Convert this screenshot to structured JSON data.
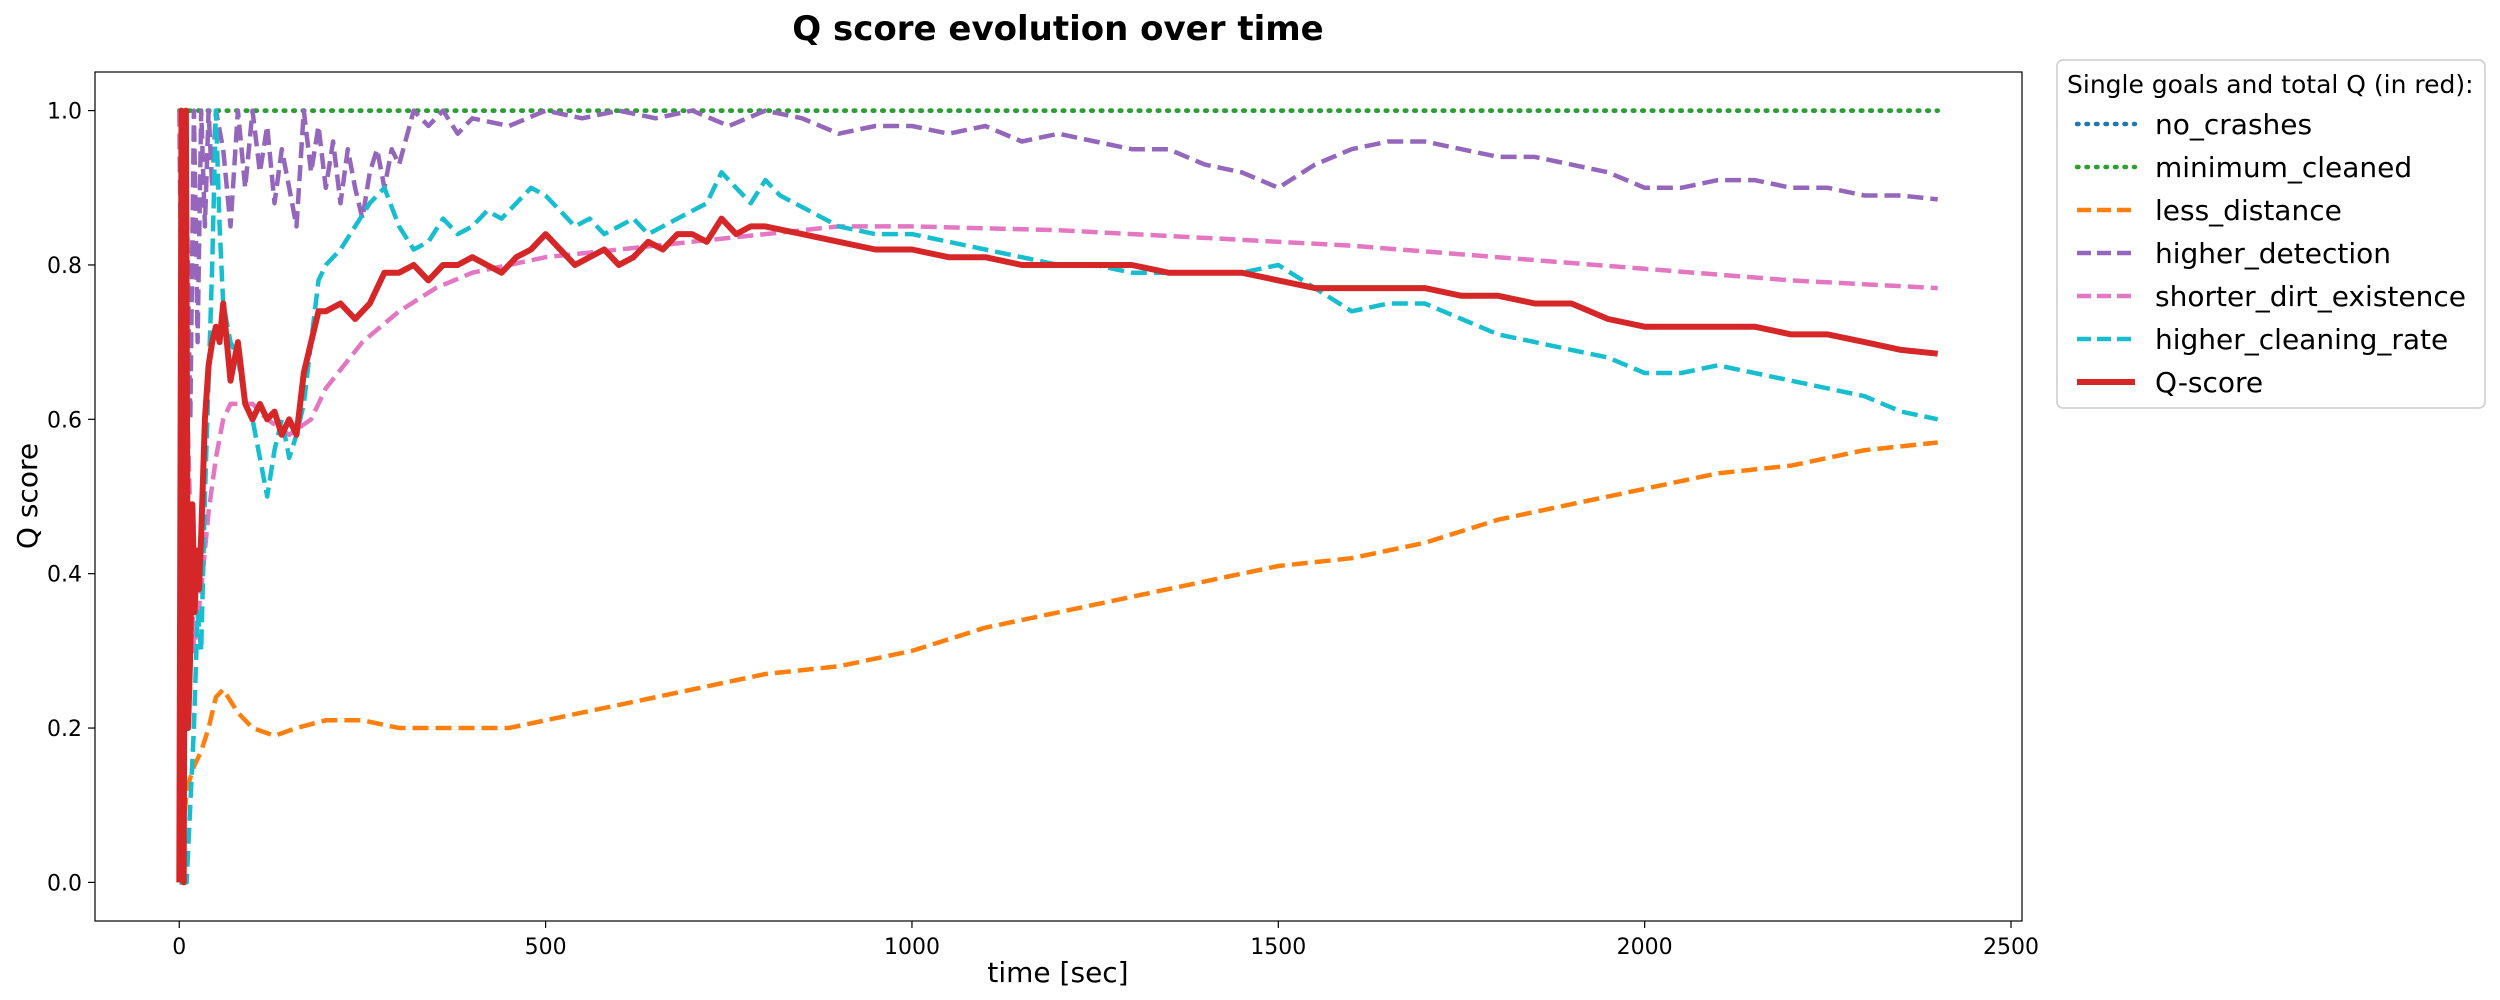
{
  "chart_data": {
    "type": "line",
    "title": "Q score evolution over time",
    "xlabel": "time [sec]",
    "ylabel": "Q score",
    "xlim": [
      -115,
      2515
    ],
    "ylim": [
      -0.05,
      1.05
    ],
    "xticks": [
      0,
      500,
      1000,
      1500,
      2000,
      2500
    ],
    "yticks": [
      0.0,
      0.2,
      0.4,
      0.6,
      0.8,
      1.0
    ],
    "xtick_labels": [
      "0",
      "500",
      "1000",
      "1500",
      "2000",
      "2500"
    ],
    "ytick_labels": [
      "0.0",
      "0.2",
      "0.4",
      "0.6",
      "0.8",
      "1.0"
    ],
    "grid": false,
    "legend": {
      "title": "Single goals and total Q (in red):",
      "placement": "outside-top-right"
    },
    "series": [
      {
        "name": "no_crashes",
        "color": "#1f77b4",
        "style": "dotted",
        "x": [
          0,
          2400
        ],
        "y": [
          1.0,
          1.0
        ]
      },
      {
        "name": "minimum_cleaned",
        "color": "#2ca02c",
        "style": "dotted",
        "x": [
          0,
          500,
          1000,
          1500,
          2000,
          2400
        ],
        "y": [
          1.0,
          1.0,
          1.0,
          1.0,
          1.0,
          1.0
        ]
      },
      {
        "name": "less_distance",
        "color": "#ff7f0e",
        "style": "dashed",
        "x": [
          0,
          10,
          20,
          30,
          40,
          50,
          60,
          80,
          100,
          130,
          160,
          200,
          250,
          300,
          350,
          400,
          450,
          500,
          550,
          600,
          700,
          800,
          900,
          1000,
          1100,
          1200,
          1300,
          1400,
          1500,
          1600,
          1700,
          1800,
          1900,
          2000,
          2100,
          2200,
          2300,
          2400
        ],
        "y": [
          0.0,
          0.12,
          0.15,
          0.17,
          0.2,
          0.24,
          0.25,
          0.22,
          0.2,
          0.19,
          0.2,
          0.21,
          0.21,
          0.2,
          0.2,
          0.2,
          0.2,
          0.21,
          0.22,
          0.23,
          0.25,
          0.27,
          0.28,
          0.3,
          0.33,
          0.35,
          0.37,
          0.39,
          0.41,
          0.42,
          0.44,
          0.47,
          0.49,
          0.51,
          0.53,
          0.54,
          0.56,
          0.57
        ]
      },
      {
        "name": "higher_detection",
        "color": "#9467bd",
        "style": "dashed",
        "x": [
          0,
          5,
          10,
          15,
          20,
          25,
          30,
          35,
          40,
          45,
          50,
          60,
          70,
          80,
          90,
          100,
          110,
          120,
          130,
          140,
          150,
          160,
          170,
          180,
          190,
          200,
          210,
          220,
          230,
          240,
          250,
          260,
          270,
          280,
          290,
          300,
          320,
          340,
          360,
          380,
          400,
          450,
          500,
          550,
          600,
          650,
          700,
          750,
          800,
          850,
          900,
          950,
          1000,
          1050,
          1100,
          1150,
          1200,
          1250,
          1300,
          1350,
          1400,
          1450,
          1500,
          1550,
          1600,
          1650,
          1700,
          1750,
          1800,
          1850,
          1900,
          1950,
          2000,
          2050,
          2100,
          2150,
          2200,
          2250,
          2300,
          2350,
          2400
        ],
        "y": [
          1.0,
          0.55,
          0.9,
          0.6,
          1.0,
          0.7,
          1.0,
          0.85,
          1.0,
          0.9,
          1.0,
          0.95,
          0.85,
          1.0,
          0.9,
          1.0,
          0.92,
          0.98,
          0.88,
          0.95,
          0.9,
          0.85,
          1.0,
          0.92,
          0.98,
          0.9,
          0.96,
          0.88,
          0.95,
          0.9,
          0.86,
          0.92,
          0.95,
          0.9,
          0.95,
          0.93,
          1.0,
          0.98,
          1.0,
          0.97,
          0.99,
          0.98,
          1.0,
          0.99,
          1.0,
          0.99,
          1.0,
          0.98,
          1.0,
          0.99,
          0.97,
          0.98,
          0.98,
          0.97,
          0.98,
          0.96,
          0.97,
          0.96,
          0.95,
          0.95,
          0.93,
          0.92,
          0.9,
          0.93,
          0.95,
          0.96,
          0.96,
          0.95,
          0.94,
          0.94,
          0.93,
          0.92,
          0.9,
          0.9,
          0.91,
          0.91,
          0.9,
          0.9,
          0.89,
          0.89,
          0.885
        ]
      },
      {
        "name": "shorter_dirt_existence",
        "color": "#e377c2",
        "style": "dashed",
        "x": [
          0,
          20,
          30,
          40,
          50,
          60,
          70,
          80,
          100,
          120,
          150,
          180,
          200,
          250,
          300,
          350,
          400,
          500,
          600,
          700,
          800,
          900,
          1000,
          1200,
          1400,
          1600,
          1800,
          2000,
          2200,
          2400
        ],
        "y": [
          1.0,
          0.3,
          0.38,
          0.48,
          0.55,
          0.6,
          0.62,
          0.62,
          0.62,
          0.6,
          0.58,
          0.6,
          0.64,
          0.7,
          0.74,
          0.77,
          0.79,
          0.81,
          0.82,
          0.83,
          0.84,
          0.85,
          0.85,
          0.845,
          0.835,
          0.825,
          0.81,
          0.795,
          0.78,
          0.77
        ]
      },
      {
        "name": "higher_cleaning_rate",
        "color": "#17becf",
        "style": "dashed",
        "x": [
          0,
          5,
          10,
          15,
          20,
          25,
          30,
          35,
          40,
          45,
          50,
          55,
          60,
          70,
          80,
          90,
          100,
          110,
          120,
          130,
          140,
          150,
          160,
          170,
          180,
          190,
          200,
          220,
          240,
          260,
          280,
          300,
          320,
          340,
          360,
          380,
          400,
          420,
          440,
          460,
          480,
          500,
          520,
          540,
          560,
          580,
          600,
          620,
          640,
          660,
          680,
          700,
          720,
          740,
          760,
          780,
          800,
          820,
          840,
          860,
          880,
          900,
          950,
          1000,
          1050,
          1100,
          1150,
          1200,
          1250,
          1300,
          1350,
          1400,
          1450,
          1500,
          1550,
          1600,
          1650,
          1700,
          1750,
          1800,
          1850,
          1900,
          1950,
          2000,
          2050,
          2100,
          2150,
          2200,
          2250,
          2300,
          2350,
          2400
        ],
        "y": [
          0.0,
          0.0,
          0.0,
          0.1,
          0.2,
          0.35,
          0.3,
          0.5,
          0.65,
          0.8,
          1.0,
          0.85,
          0.75,
          0.7,
          0.68,
          0.62,
          0.6,
          0.55,
          0.5,
          0.56,
          0.6,
          0.55,
          0.58,
          0.62,
          0.7,
          0.78,
          0.8,
          0.82,
          0.85,
          0.88,
          0.9,
          0.85,
          0.82,
          0.83,
          0.86,
          0.84,
          0.85,
          0.87,
          0.86,
          0.88,
          0.9,
          0.89,
          0.87,
          0.85,
          0.86,
          0.84,
          0.85,
          0.86,
          0.84,
          0.85,
          0.86,
          0.87,
          0.88,
          0.92,
          0.9,
          0.88,
          0.91,
          0.89,
          0.88,
          0.87,
          0.86,
          0.85,
          0.84,
          0.84,
          0.83,
          0.82,
          0.81,
          0.8,
          0.8,
          0.79,
          0.79,
          0.79,
          0.79,
          0.8,
          0.77,
          0.74,
          0.75,
          0.75,
          0.73,
          0.71,
          0.7,
          0.69,
          0.68,
          0.66,
          0.66,
          0.67,
          0.66,
          0.65,
          0.64,
          0.63,
          0.61,
          0.6
        ]
      },
      {
        "name": "Q-score",
        "color": "#d62728",
        "style": "solid",
        "x": [
          0,
          3,
          6,
          9,
          12,
          15,
          18,
          21,
          24,
          27,
          30,
          35,
          40,
          45,
          50,
          55,
          60,
          70,
          80,
          90,
          100,
          110,
          120,
          130,
          140,
          150,
          160,
          170,
          180,
          190,
          200,
          220,
          240,
          260,
          280,
          300,
          320,
          340,
          360,
          380,
          400,
          420,
          440,
          460,
          480,
          500,
          520,
          540,
          560,
          580,
          600,
          620,
          640,
          660,
          680,
          700,
          720,
          740,
          760,
          780,
          800,
          850,
          900,
          950,
          1000,
          1050,
          1100,
          1150,
          1200,
          1250,
          1300,
          1350,
          1400,
          1450,
          1500,
          1550,
          1600,
          1650,
          1700,
          1750,
          1800,
          1850,
          1900,
          1950,
          2000,
          2050,
          2100,
          2150,
          2200,
          2250,
          2300,
          2350,
          2400
        ],
        "y": [
          0.0,
          1.0,
          0.0,
          1.0,
          0.2,
          0.3,
          0.49,
          0.35,
          0.43,
          0.38,
          0.45,
          0.6,
          0.67,
          0.7,
          0.72,
          0.7,
          0.75,
          0.65,
          0.7,
          0.62,
          0.6,
          0.62,
          0.6,
          0.61,
          0.58,
          0.6,
          0.58,
          0.66,
          0.7,
          0.74,
          0.74,
          0.75,
          0.73,
          0.75,
          0.79,
          0.79,
          0.8,
          0.78,
          0.8,
          0.8,
          0.81,
          0.8,
          0.79,
          0.81,
          0.82,
          0.84,
          0.82,
          0.8,
          0.81,
          0.82,
          0.8,
          0.81,
          0.83,
          0.82,
          0.84,
          0.84,
          0.83,
          0.86,
          0.84,
          0.85,
          0.85,
          0.84,
          0.83,
          0.82,
          0.82,
          0.81,
          0.81,
          0.8,
          0.8,
          0.8,
          0.8,
          0.79,
          0.79,
          0.79,
          0.78,
          0.77,
          0.77,
          0.77,
          0.77,
          0.76,
          0.76,
          0.75,
          0.75,
          0.73,
          0.72,
          0.72,
          0.72,
          0.72,
          0.71,
          0.71,
          0.7,
          0.69,
          0.685
        ]
      }
    ]
  }
}
